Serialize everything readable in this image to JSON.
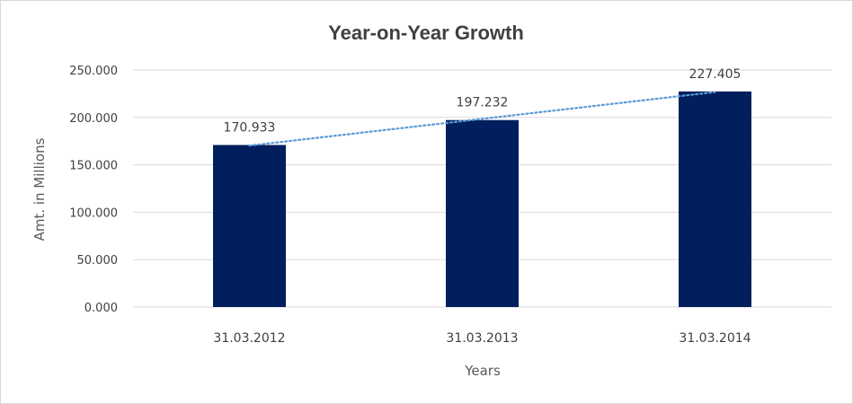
{
  "chart_data": {
    "type": "bar",
    "title": "Year-on-Year Growth",
    "xlabel": "Years",
    "ylabel": "Amt. in Millions",
    "categories": [
      "31.03.2012",
      "31.03.2013",
      "31.03.2014"
    ],
    "values": [
      170.933,
      197.232,
      227.405
    ],
    "data_labels": [
      "170.933",
      "197.232",
      "227.405"
    ],
    "ylim": [
      0,
      250
    ],
    "yticks": [
      0,
      50,
      100,
      150,
      200,
      250
    ],
    "ytick_labels": [
      "0.000",
      "50.000",
      "100.000",
      "150.000",
      "200.000",
      "250.000"
    ],
    "grid": true,
    "trendline": "linear",
    "colors": {
      "bar": "#001f5c",
      "trendline": "#5b9bd5",
      "grid": "#d9d9d9",
      "text": "#404040"
    }
  }
}
